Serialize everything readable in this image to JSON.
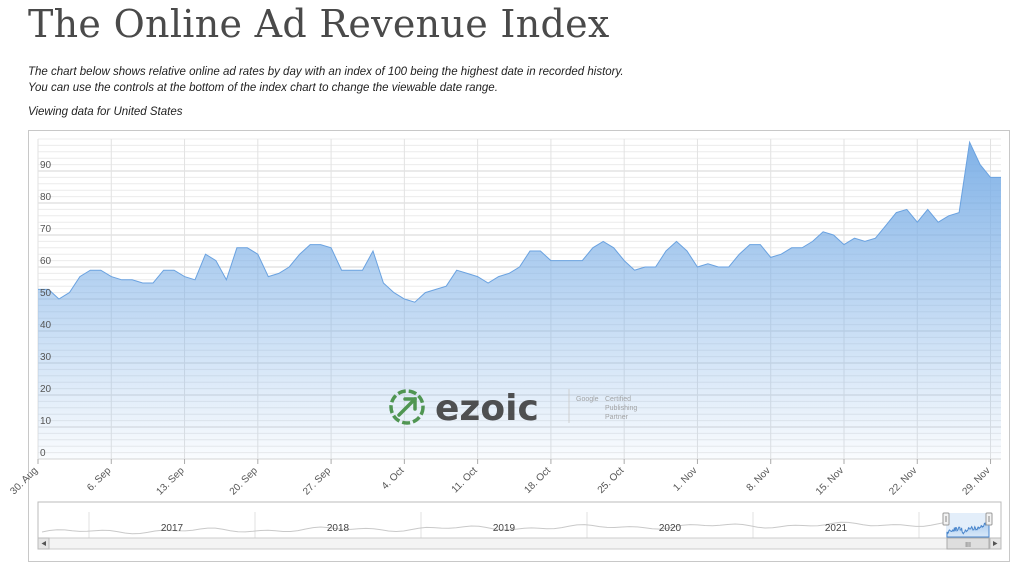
{
  "page": {
    "title": "The Online Ad Revenue Index",
    "description_line1": "The chart below shows relative online ad rates by day with an index of 100 being the highest date in recorded history.",
    "description_line2": "You can use the controls at the bottom of the index chart to change the viewable date range.",
    "viewing": "Viewing data for United States"
  },
  "watermark": {
    "brand": "ezoic",
    "badge_line1": "Google",
    "badge_line2": "Certified",
    "badge_line3": "Publishing",
    "badge_line4": "Partner",
    "logo_color": "#3c8a3c"
  },
  "navigator": {
    "years": [
      "2017",
      "2018",
      "2019",
      "2020",
      "2021"
    ],
    "scroll_left_icon": "arrow-left-icon",
    "scroll_right_icon": "arrow-right-icon",
    "scroll_grip_text": "III"
  },
  "chart_data": {
    "type": "area",
    "title": "",
    "xlabel": "",
    "ylabel": "",
    "ylim": [
      0,
      100
    ],
    "yticks": [
      0,
      10,
      20,
      30,
      40,
      50,
      60,
      70,
      80,
      90
    ],
    "xticks": [
      "30. Aug",
      "6. Sep",
      "13. Sep",
      "20. Sep",
      "27. Sep",
      "4. Oct",
      "11. Oct",
      "18. Oct",
      "25. Oct",
      "1. Nov",
      "8. Nov",
      "15. Nov",
      "22. Nov",
      "29. Nov"
    ],
    "grid": true,
    "legend": "none",
    "color": "#7aaee6",
    "series": [
      {
        "x": [
          0,
          1,
          2,
          3,
          4,
          5,
          6,
          7,
          8,
          9,
          10,
          11,
          12,
          13,
          14,
          15,
          16,
          17,
          18,
          19,
          20,
          21,
          22,
          23,
          24,
          25,
          26,
          27,
          28,
          29,
          30,
          31,
          32,
          33,
          34,
          35,
          36,
          37,
          38,
          39,
          40,
          41,
          42,
          43,
          44,
          45,
          46,
          47,
          48,
          49,
          50,
          51,
          52,
          53,
          54,
          55,
          56,
          57,
          58,
          59,
          60,
          61,
          62,
          63,
          64,
          65,
          66,
          67,
          68,
          69,
          70,
          71,
          72,
          73,
          74,
          75,
          76,
          77,
          78,
          79,
          80,
          81,
          82,
          83,
          84,
          85,
          86,
          87,
          88,
          89,
          90,
          91,
          92
        ],
        "values": [
          53,
          53,
          50,
          52,
          57,
          59,
          59,
          57,
          56,
          56,
          55,
          55,
          59,
          59,
          57,
          56,
          64,
          62,
          56,
          66,
          66,
          64,
          57,
          58,
          60,
          64,
          67,
          67,
          66,
          59,
          59,
          59,
          65,
          55,
          52,
          50,
          49,
          52,
          53,
          54,
          59,
          58,
          57,
          55,
          57,
          58,
          60,
          65,
          65,
          62,
          62,
          62,
          62,
          66,
          68,
          66,
          62,
          59,
          60,
          60,
          65,
          68,
          65,
          60,
          61,
          60,
          60,
          64,
          67,
          67,
          63,
          64,
          66,
          66,
          68,
          71,
          70,
          67,
          69,
          68,
          69,
          73,
          77,
          78,
          74,
          78,
          74,
          76,
          77,
          99,
          92,
          88,
          88
        ]
      }
    ]
  }
}
